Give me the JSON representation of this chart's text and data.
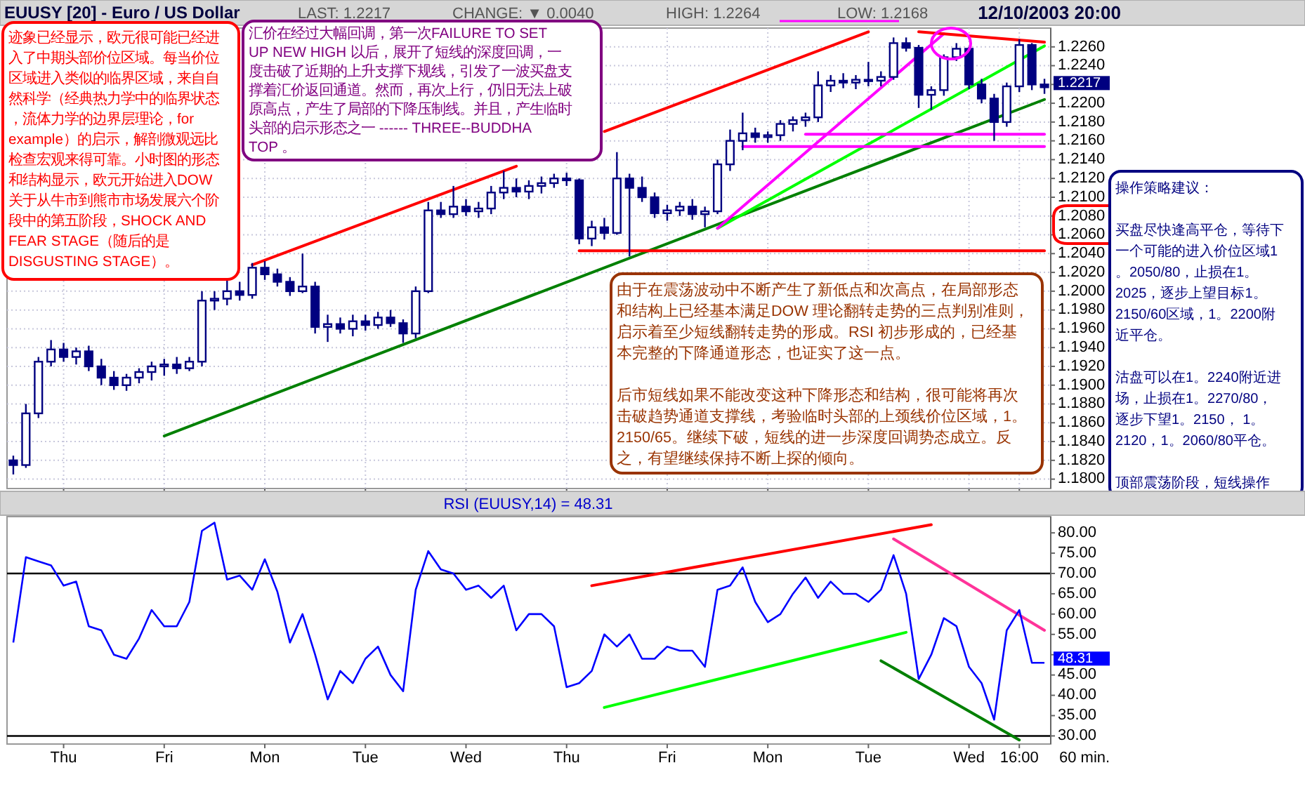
{
  "chart_data": [
    {
      "type": "candlestick",
      "title": "EUUSY [20] - Euro / US Dollar",
      "color": "#000080",
      "grid": true,
      "tick_labels": "y",
      "categories": [
        null,
        null,
        null,
        null,
        "Thu",
        null,
        null,
        null,
        null,
        null,
        null,
        null,
        "Fri",
        null,
        null,
        null,
        null,
        null,
        null,
        null,
        "Mon",
        null,
        null,
        null,
        null,
        null,
        null,
        null,
        "Tue",
        null,
        null,
        null,
        null,
        null,
        null,
        null,
        "Wed",
        null,
        null,
        null,
        null,
        null,
        null,
        null,
        "Thu",
        null,
        null,
        null,
        null,
        null,
        null,
        null,
        "Fri",
        null,
        null,
        null,
        null,
        null,
        null,
        null,
        "Mon",
        null,
        null,
        null,
        null,
        null,
        null,
        null,
        "Tue",
        null,
        null,
        null,
        null,
        null,
        null,
        null,
        "Wed",
        null,
        null,
        null,
        "16:00",
        null,
        null
      ],
      "ylim": [
        1.179,
        1.228
      ],
      "yticks": [
        {
          "value": 1.18,
          "label": "1.1800"
        },
        {
          "value": 1.182,
          "label": "1.1820"
        },
        {
          "value": 1.184,
          "label": "1.1840"
        },
        {
          "value": 1.186,
          "label": "1.1860"
        },
        {
          "value": 1.188,
          "label": "1.1880"
        },
        {
          "value": 1.19,
          "label": "1.1900"
        },
        {
          "value": 1.192,
          "label": "1.1920"
        },
        {
          "value": 1.194,
          "label": "1.1940"
        },
        {
          "value": 1.196,
          "label": "1.1960"
        },
        {
          "value": 1.198,
          "label": "1.1980"
        },
        {
          "value": 1.2,
          "label": "1.2000"
        },
        {
          "value": 1.202,
          "label": "1.2020"
        },
        {
          "value": 1.204,
          "label": "1.2040"
        },
        {
          "value": 1.206,
          "label": "1.2060"
        },
        {
          "value": 1.208,
          "label": "1.2080"
        },
        {
          "value": 1.21,
          "label": "1.2100"
        },
        {
          "value": 1.212,
          "label": "1.2120"
        },
        {
          "value": 1.214,
          "label": "1.2140"
        },
        {
          "value": 1.216,
          "label": "1.2160"
        },
        {
          "value": 1.218,
          "label": "1.2180"
        },
        {
          "value": 1.22,
          "label": "1.2200"
        },
        {
          "value": 1.222,
          "label": null
        },
        {
          "value": 1.224,
          "label": "1.2240"
        },
        {
          "value": 1.226,
          "label": "1.2260"
        }
      ],
      "ohlc": [
        [
          1.182,
          1.1825,
          1.1805,
          1.1815
        ],
        [
          1.1815,
          1.188,
          1.1812,
          1.187
        ],
        [
          1.187,
          1.193,
          1.1865,
          1.1925
        ],
        [
          1.1925,
          1.1948,
          1.192,
          1.1938
        ],
        [
          1.1938,
          1.1945,
          1.1925,
          1.193
        ],
        [
          1.193,
          1.194,
          1.1922,
          1.1936
        ],
        [
          1.1936,
          1.1942,
          1.1915,
          1.192
        ],
        [
          1.192,
          1.1928,
          1.19,
          1.1908
        ],
        [
          1.1908,
          1.1915,
          1.1895,
          1.19
        ],
        [
          1.19,
          1.1912,
          1.1894,
          1.1908
        ],
        [
          1.1908,
          1.1918,
          1.1902,
          1.1914
        ],
        [
          1.1914,
          1.1925,
          1.1905,
          1.192
        ],
        [
          1.192,
          1.1928,
          1.191,
          1.1922
        ],
        [
          1.1922,
          1.193,
          1.1912,
          1.1918
        ],
        [
          1.1918,
          1.193,
          1.1915,
          1.1925
        ],
        [
          1.1925,
          1.2,
          1.192,
          1.199
        ],
        [
          1.199,
          1.2,
          1.198,
          1.1992
        ],
        [
          1.1992,
          1.2012,
          1.1985,
          1.2
        ],
        [
          1.2,
          1.201,
          1.199,
          1.1996
        ],
        [
          1.1996,
          1.203,
          1.1992,
          1.2025
        ],
        [
          1.2025,
          1.2032,
          1.2012,
          1.2018
        ],
        [
          1.2018,
          1.2024,
          1.2005,
          1.201
        ],
        [
          1.201,
          1.2015,
          1.1995,
          1.2
        ],
        [
          1.2,
          1.204,
          1.1998,
          1.2005
        ],
        [
          1.2005,
          1.201,
          1.1955,
          1.1962
        ],
        [
          1.1962,
          1.1975,
          1.1946,
          1.1965
        ],
        [
          1.1965,
          1.1972,
          1.1955,
          1.196
        ],
        [
          1.196,
          1.1975,
          1.1952,
          1.1968
        ],
        [
          1.1968,
          1.1975,
          1.1958,
          1.1964
        ],
        [
          1.1964,
          1.1978,
          1.196,
          1.1972
        ],
        [
          1.1972,
          1.198,
          1.1962,
          1.1966
        ],
        [
          1.1966,
          1.197,
          1.1945,
          1.1955
        ],
        [
          1.1955,
          1.2005,
          1.195,
          1.2
        ],
        [
          1.2,
          1.2095,
          1.1998,
          1.2086
        ],
        [
          1.2086,
          1.2095,
          1.2078,
          1.2082
        ],
        [
          1.2082,
          1.2112,
          1.2078,
          1.209
        ],
        [
          1.209,
          1.2098,
          1.208,
          1.2085
        ],
        [
          1.2085,
          1.2095,
          1.2078,
          1.2088
        ],
        [
          1.2088,
          1.2112,
          1.2082,
          1.2105
        ],
        [
          1.2105,
          1.2128,
          1.2098,
          1.211
        ],
        [
          1.211,
          1.212,
          1.21,
          1.2106
        ],
        [
          1.2106,
          1.2118,
          1.2098,
          1.2112
        ],
        [
          1.2112,
          1.2122,
          1.2104,
          1.2115
        ],
        [
          1.2115,
          1.2125,
          1.211,
          1.212
        ],
        [
          1.212,
          1.2126,
          1.2112,
          1.2118
        ],
        [
          1.2118,
          1.212,
          1.205,
          1.2056
        ],
        [
          1.2056,
          1.2075,
          1.2048,
          1.2068
        ],
        [
          1.2068,
          1.2078,
          1.2055,
          1.2062
        ],
        [
          1.2062,
          1.2148,
          1.206,
          1.212
        ],
        [
          1.212,
          1.2125,
          1.2037,
          1.211
        ],
        [
          1.211,
          1.2122,
          1.2095,
          1.21
        ],
        [
          1.21,
          1.2105,
          1.2078,
          1.2083
        ],
        [
          1.2083,
          1.2092,
          1.2075,
          1.2086
        ],
        [
          1.2086,
          1.2095,
          1.208,
          1.209
        ],
        [
          1.209,
          1.2098,
          1.2076,
          1.2082
        ],
        [
          1.2082,
          1.209,
          1.2068,
          1.2085
        ],
        [
          1.2085,
          1.214,
          1.2082,
          1.2135
        ],
        [
          1.2135,
          1.2172,
          1.2128,
          1.216
        ],
        [
          1.216,
          1.219,
          1.215,
          1.2168
        ],
        [
          1.2168,
          1.2174,
          1.2158,
          1.2164
        ],
        [
          1.2164,
          1.217,
          1.2158,
          1.2166
        ],
        [
          1.2166,
          1.2182,
          1.216,
          1.2178
        ],
        [
          1.2178,
          1.2186,
          1.217,
          1.2182
        ],
        [
          1.2182,
          1.219,
          1.2175,
          1.2185
        ],
        [
          1.2185,
          1.2234,
          1.218,
          1.2219
        ],
        [
          1.2219,
          1.223,
          1.2212,
          1.2224
        ],
        [
          1.2224,
          1.2232,
          1.2216,
          1.2222
        ],
        [
          1.2222,
          1.223,
          1.2215,
          1.2225
        ],
        [
          1.2225,
          1.2244,
          1.2218,
          1.2224
        ],
        [
          1.2224,
          1.2234,
          1.2218,
          1.2228
        ],
        [
          1.2228,
          1.227,
          1.2225,
          1.2264
        ],
        [
          1.2264,
          1.227,
          1.2255,
          1.2259
        ],
        [
          1.2259,
          1.2262,
          1.2195,
          1.2209
        ],
        [
          1.2209,
          1.2218,
          1.2193,
          1.2214
        ],
        [
          1.2214,
          1.2252,
          1.2208,
          1.2249
        ],
        [
          1.2249,
          1.2264,
          1.2245,
          1.2258
        ],
        [
          1.2258,
          1.226,
          1.2215,
          1.222
        ],
        [
          1.222,
          1.2226,
          1.22,
          1.2205
        ],
        [
          1.2205,
          1.221,
          1.216,
          1.218
        ],
        [
          1.218,
          1.2222,
          1.2175,
          1.2218
        ],
        [
          1.2218,
          1.2268,
          1.2212,
          1.2262
        ],
        [
          1.2262,
          1.2264,
          1.2214,
          1.222
        ],
        [
          1.222,
          1.2226,
          1.221,
          1.2217
        ]
      ],
      "series": [
        {
          "type": "line",
          "color": "#ff0000",
          "values": [
            null,
            null,
            null,
            null,
            null,
            null,
            null,
            null,
            null,
            null,
            null,
            null,
            null,
            null,
            null,
            null,
            null,
            null,
            null,
            1.2028,
            null,
            null,
            null,
            null,
            null,
            null,
            null,
            null,
            null,
            null,
            null,
            null,
            null,
            null,
            null,
            null,
            null,
            null,
            null,
            null,
            1.2133,
            null,
            null,
            null,
            null,
            null,
            null,
            null,
            null,
            null,
            null,
            null,
            null,
            null,
            null,
            null,
            null,
            null,
            null,
            null,
            null,
            null,
            null,
            null,
            null,
            null,
            null,
            null,
            null,
            null,
            null,
            null,
            null,
            null,
            null,
            null,
            null,
            null,
            null,
            null,
            null,
            null,
            null
          ]
        },
        {
          "type": "line",
          "color": "#ff0000",
          "values": [
            null,
            null,
            null,
            null,
            null,
            null,
            null,
            null,
            null,
            null,
            null,
            null,
            null,
            null,
            null,
            null,
            null,
            null,
            null,
            null,
            null,
            null,
            null,
            null,
            null,
            null,
            null,
            null,
            null,
            null,
            null,
            null,
            null,
            null,
            null,
            null,
            null,
            null,
            null,
            null,
            null,
            null,
            null,
            null,
            null,
            null,
            null,
            1.217,
            null,
            null,
            null,
            null,
            null,
            null,
            null,
            null,
            null,
            null,
            null,
            null,
            null,
            null,
            null,
            null,
            null,
            null,
            null,
            null,
            1.2276,
            null,
            null,
            null,
            null,
            null,
            null,
            null,
            null,
            null,
            null,
            null,
            null,
            null,
            null
          ]
        },
        {
          "type": "line",
          "color": "#008000",
          "values": [
            null,
            null,
            null,
            null,
            null,
            null,
            null,
            null,
            null,
            null,
            null,
            null,
            1.1846,
            null,
            null,
            null,
            null,
            null,
            null,
            null,
            null,
            null,
            null,
            null,
            null,
            null,
            null,
            null,
            null,
            null,
            null,
            null,
            null,
            null,
            null,
            null,
            null,
            null,
            null,
            null,
            null,
            null,
            null,
            null,
            null,
            null,
            null,
            null,
            null,
            null,
            null,
            null,
            null,
            null,
            null,
            null,
            null,
            null,
            null,
            null,
            null,
            null,
            null,
            null,
            null,
            null,
            null,
            null,
            null,
            null,
            null,
            null,
            null,
            null,
            null,
            null,
            null,
            null,
            null,
            null,
            null,
            null,
            1.2204
          ]
        },
        {
          "type": "line",
          "color": "#00ff00",
          "values": [
            null,
            null,
            null,
            null,
            null,
            null,
            null,
            null,
            null,
            null,
            null,
            null,
            null,
            null,
            null,
            null,
            null,
            null,
            null,
            null,
            null,
            null,
            null,
            null,
            null,
            null,
            null,
            null,
            null,
            null,
            null,
            null,
            null,
            null,
            null,
            null,
            null,
            null,
            null,
            null,
            null,
            null,
            null,
            null,
            null,
            null,
            null,
            null,
            null,
            null,
            null,
            null,
            null,
            null,
            null,
            null,
            1.2067,
            null,
            null,
            null,
            null,
            null,
            null,
            null,
            null,
            null,
            null,
            null,
            null,
            null,
            null,
            null,
            null,
            null,
            null,
            null,
            null,
            null,
            null,
            null,
            null,
            null,
            1.2261
          ]
        },
        {
          "type": "line",
          "color": "#ff00ff",
          "values": [
            null,
            null,
            null,
            null,
            null,
            null,
            null,
            null,
            null,
            null,
            null,
            null,
            null,
            null,
            null,
            null,
            null,
            null,
            null,
            null,
            null,
            null,
            null,
            null,
            null,
            null,
            null,
            null,
            null,
            null,
            null,
            null,
            null,
            null,
            null,
            null,
            null,
            null,
            null,
            null,
            null,
            null,
            null,
            null,
            null,
            null,
            null,
            null,
            null,
            null,
            null,
            null,
            null,
            null,
            null,
            null,
            1.2067,
            null,
            null,
            null,
            null,
            null,
            null,
            null,
            null,
            null,
            null,
            null,
            null,
            null,
            null,
            null,
            null,
            null,
            1.2274,
            null,
            null,
            null,
            null,
            null,
            null,
            null,
            null
          ]
        },
        {
          "type": "line",
          "color": "#ff00ff",
          "values": [
            null,
            null,
            null,
            null,
            null,
            null,
            null,
            null,
            null,
            null,
            null,
            null,
            null,
            null,
            null,
            null,
            null,
            null,
            null,
            null,
            null,
            null,
            null,
            null,
            null,
            null,
            null,
            null,
            null,
            null,
            null,
            null,
            null,
            null,
            null,
            null,
            null,
            null,
            null,
            null,
            null,
            null,
            null,
            null,
            null,
            null,
            null,
            null,
            null,
            null,
            null,
            null,
            null,
            null,
            null,
            null,
            null,
            null,
            1.2154,
            null,
            null,
            null,
            null,
            null,
            null,
            null,
            null,
            null,
            null,
            null,
            null,
            null,
            null,
            null,
            null,
            null,
            null,
            null,
            null,
            null,
            null,
            null,
            1.2154
          ]
        },
        {
          "type": "line",
          "color": "#ff00ff",
          "values": [
            null,
            null,
            null,
            null,
            null,
            null,
            null,
            null,
            null,
            null,
            null,
            null,
            null,
            null,
            null,
            null,
            null,
            null,
            null,
            null,
            null,
            null,
            null,
            null,
            null,
            null,
            null,
            null,
            null,
            null,
            null,
            null,
            null,
            null,
            null,
            null,
            null,
            null,
            null,
            null,
            null,
            null,
            null,
            null,
            null,
            null,
            null,
            null,
            null,
            null,
            null,
            null,
            null,
            null,
            null,
            null,
            null,
            null,
            null,
            null,
            null,
            null,
            null,
            1.2167,
            null,
            null,
            null,
            null,
            null,
            null,
            null,
            null,
            null,
            null,
            null,
            null,
            null,
            null,
            null,
            null,
            null,
            null,
            1.2167
          ]
        },
        {
          "type": "line",
          "color": "#ff0000",
          "values": [
            null,
            null,
            null,
            null,
            null,
            null,
            null,
            null,
            null,
            null,
            null,
            null,
            null,
            null,
            null,
            null,
            null,
            null,
            null,
            null,
            null,
            null,
            null,
            null,
            null,
            null,
            null,
            null,
            null,
            null,
            null,
            null,
            null,
            null,
            null,
            null,
            null,
            null,
            null,
            null,
            null,
            null,
            null,
            null,
            null,
            null,
            null,
            null,
            null,
            null,
            null,
            null,
            null,
            null,
            null,
            null,
            null,
            null,
            null,
            null,
            null,
            null,
            null,
            null,
            null,
            null,
            null,
            null,
            null,
            null,
            null,
            null,
            1.2276,
            null,
            null,
            null,
            null,
            null,
            null,
            null,
            null,
            null,
            1.2265
          ]
        },
        {
          "type": "line",
          "color": "#ff0000",
          "values": [
            null,
            null,
            null,
            null,
            null,
            null,
            null,
            null,
            null,
            null,
            null,
            null,
            null,
            null,
            null,
            null,
            null,
            null,
            null,
            null,
            null,
            null,
            null,
            null,
            null,
            null,
            null,
            null,
            null,
            null,
            null,
            null,
            null,
            null,
            null,
            null,
            null,
            null,
            null,
            null,
            null,
            null,
            null,
            null,
            null,
            1.2043,
            null,
            null,
            null,
            null,
            null,
            null,
            null,
            null,
            null,
            null,
            null,
            null,
            null,
            null,
            null,
            null,
            null,
            null,
            null,
            null,
            null,
            null,
            null,
            null,
            null,
            null,
            null,
            null,
            null,
            null,
            null,
            null,
            null,
            null,
            null,
            null,
            1.2043
          ]
        }
      ],
      "annotations": [
        "LAST: 1.2217",
        "CHANGE: ▼ 0.0040",
        "HIGH: 1.2264",
        "LOW: 1.2168",
        "12/10/2003 20:00",
        "迹象已经显示，欧元很可能已经进入了中期头部价位区域。每当价位区域进入类似的临界区域，来自自然科学（经典热力学中的临界状态，流体力学的边界层理论，for example）的启示，解剖微观远比检查宏观来得可靠。小时图的形态和结构显示，欧元开始进入DOW 关于从牛市到熊市市场发展六个阶段中的第五阶段，SHOCK AND FEAR STAGE（随后的是DISGUSTING STAGE）。",
        "汇价在经过大幅回调，第一次FAILURE TO SET UP NEW HIGH 以后，展开了短线的深度回调，一度击破了近期的上升支撑下规线，引发了一波买盘支撑着汇价返回通道。然而，再次上行，仍旧无法上破原高点，产生了局部的下降压制线。并且，产生临时头部的启示形态之一 ------ THREE--BUDDHA TOP 。",
        "由于在震荡波动中不断产生了新低点和次高点，在局部形态和结构上已经基本满足DOW 理论翻转走势的三点判别准则，启示着至少短线翻转走势的形成。RSI 初步形成的，已经基本完整的下降通道形态，也证实了这一点。",
        "后市短线如果不能改变这种下降形态和结构，很可能将再次击破趋势通道支撑线，考验临时头部的上颈线价位区域，1。2150/65。继续下破，短线的进一步深度回调势态成立。反之，有望继续保持不断上探的倾向。",
        "操作策略建议：",
        "买盘尽快逢高平仓，等待下一个可能的进入价位区域1。2050/80，止损在1。2025，逐步上望目标1。2150/60区域，1。2200附近平仓。",
        "沽盘可以在1。2240附近进场，止损在1。2270/80，逐步下望1。2150， 1。2120，1。2060/80平仓。",
        "顶部震荡阶段，短线操作",
        "1.2217"
      ]
    },
    {
      "type": "line",
      "title": "RSI (EUUSY,14) = 48.31",
      "xlabel": "60 min.",
      "color": "#0000ff",
      "categories": [
        null,
        null,
        null,
        null,
        "Thu",
        null,
        null,
        null,
        null,
        null,
        null,
        null,
        "Fri",
        null,
        null,
        null,
        null,
        null,
        null,
        null,
        "Mon",
        null,
        null,
        null,
        null,
        null,
        null,
        null,
        "Tue",
        null,
        null,
        null,
        null,
        null,
        null,
        null,
        "Wed",
        null,
        null,
        null,
        null,
        null,
        null,
        null,
        "Thu",
        null,
        null,
        null,
        null,
        null,
        null,
        null,
        "Fri",
        null,
        null,
        null,
        null,
        null,
        null,
        null,
        "Mon",
        null,
        null,
        null,
        null,
        null,
        null,
        null,
        "Tue",
        null,
        null,
        null,
        null,
        null,
        null,
        null,
        "Wed",
        null,
        null,
        null,
        "16:00",
        null,
        null
      ],
      "ylim": [
        28,
        84
      ],
      "yticks": [
        {
          "value": 30,
          "label": "30.00"
        },
        {
          "value": 35,
          "label": "35.00"
        },
        {
          "value": 40,
          "label": "40.00"
        },
        {
          "value": 45,
          "label": "45.00"
        },
        {
          "value": 50,
          "label": null
        },
        {
          "value": 55,
          "label": "55.00"
        },
        {
          "value": 60,
          "label": "60.00"
        },
        {
          "value": 65,
          "label": "65.00"
        },
        {
          "value": 70,
          "label": "70.00"
        },
        {
          "value": 75,
          "label": "75.00"
        },
        {
          "value": 80,
          "label": "80.00"
        }
      ],
      "values": [
        53,
        74,
        73,
        72,
        67,
        68,
        57,
        56,
        50,
        49,
        54,
        61,
        57,
        57,
        63,
        80.5,
        82.5,
        68.5,
        69.5,
        66,
        73.5,
        65.5,
        53,
        60,
        50,
        39,
        46,
        43,
        49,
        52,
        45,
        41,
        66,
        75.5,
        71,
        70,
        66,
        67,
        64,
        67,
        56,
        60,
        60,
        57,
        42,
        43,
        46,
        55,
        52,
        55,
        49,
        49,
        52,
        51,
        51,
        47,
        66,
        67,
        71.5,
        63,
        58,
        60,
        65,
        69,
        64,
        68,
        65,
        65,
        63,
        66,
        74.5,
        65,
        44,
        50,
        59,
        57,
        47,
        43,
        34,
        56,
        61,
        48,
        48
      ],
      "ref_lines": [
        {
          "axis": "y",
          "value": 70,
          "color": "#000000"
        },
        {
          "axis": "y",
          "value": 30,
          "color": "#000000"
        }
      ],
      "series": [
        {
          "type": "line",
          "color": "#ff0000",
          "values": [
            null,
            null,
            null,
            null,
            null,
            null,
            null,
            null,
            null,
            null,
            null,
            null,
            null,
            null,
            null,
            null,
            null,
            null,
            null,
            null,
            null,
            null,
            null,
            null,
            null,
            null,
            null,
            null,
            null,
            null,
            null,
            null,
            null,
            null,
            null,
            null,
            null,
            null,
            null,
            null,
            null,
            null,
            null,
            null,
            null,
            null,
            67,
            null,
            null,
            null,
            null,
            null,
            null,
            null,
            null,
            null,
            null,
            null,
            null,
            null,
            null,
            null,
            null,
            null,
            null,
            null,
            null,
            null,
            null,
            null,
            null,
            null,
            null,
            82,
            null,
            null,
            null,
            null,
            null,
            null,
            null,
            null,
            null
          ]
        },
        {
          "type": "line",
          "color": "#00ff00",
          "values": [
            null,
            null,
            null,
            null,
            null,
            null,
            null,
            null,
            null,
            null,
            null,
            null,
            null,
            null,
            null,
            null,
            null,
            null,
            null,
            null,
            null,
            null,
            null,
            null,
            null,
            null,
            null,
            null,
            null,
            null,
            null,
            null,
            null,
            null,
            null,
            null,
            null,
            null,
            null,
            null,
            null,
            null,
            null,
            null,
            null,
            null,
            null,
            37,
            null,
            null,
            null,
            null,
            null,
            null,
            null,
            null,
            null,
            null,
            null,
            null,
            null,
            null,
            null,
            null,
            null,
            null,
            null,
            null,
            null,
            null,
            null,
            55.5,
            null,
            null,
            null,
            null,
            null,
            null,
            null,
            null,
            null,
            null,
            null
          ]
        },
        {
          "type": "line",
          "color": "#ff3399",
          "values": [
            null,
            null,
            null,
            null,
            null,
            null,
            null,
            null,
            null,
            null,
            null,
            null,
            null,
            null,
            null,
            null,
            null,
            null,
            null,
            null,
            null,
            null,
            null,
            null,
            null,
            null,
            null,
            null,
            null,
            null,
            null,
            null,
            null,
            null,
            null,
            null,
            null,
            null,
            null,
            null,
            null,
            null,
            null,
            null,
            null,
            null,
            null,
            null,
            null,
            null,
            null,
            null,
            null,
            null,
            null,
            null,
            null,
            null,
            null,
            null,
            null,
            null,
            null,
            null,
            null,
            null,
            null,
            null,
            null,
            null,
            78.5,
            null,
            null,
            null,
            null,
            null,
            null,
            null,
            null,
            null,
            null,
            null,
            56
          ]
        },
        {
          "type": "line",
          "color": "#008000",
          "values": [
            null,
            null,
            null,
            null,
            null,
            null,
            null,
            null,
            null,
            null,
            null,
            null,
            null,
            null,
            null,
            null,
            null,
            null,
            null,
            null,
            null,
            null,
            null,
            null,
            null,
            null,
            null,
            null,
            null,
            null,
            null,
            null,
            null,
            null,
            null,
            null,
            null,
            null,
            null,
            null,
            null,
            null,
            null,
            null,
            null,
            null,
            null,
            null,
            null,
            null,
            null,
            null,
            null,
            null,
            null,
            null,
            null,
            null,
            null,
            null,
            null,
            null,
            null,
            null,
            null,
            null,
            null,
            null,
            null,
            48.5,
            null,
            null,
            null,
            null,
            null,
            null,
            null,
            null,
            null,
            null,
            29,
            null,
            null
          ]
        }
      ],
      "annotations": [
        "48.31"
      ]
    }
  ]
}
